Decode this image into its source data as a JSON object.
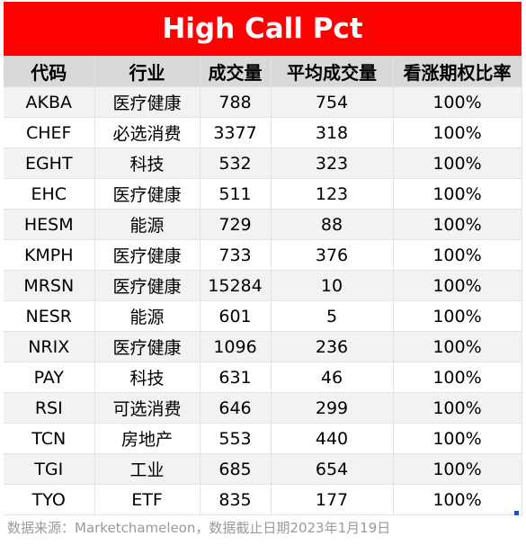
{
  "title": "High Call Pct",
  "columns": [
    "代码",
    "行业",
    "成交量",
    "平均成交量",
    "看涨期权比率"
  ],
  "rows": [
    [
      "AKBA",
      "医疗健康",
      "788",
      "754",
      "100%"
    ],
    [
      "CHEF",
      "必选消费",
      "3377",
      "318",
      "100%"
    ],
    [
      "EGHT",
      "科技",
      "532",
      "323",
      "100%"
    ],
    [
      "EHC",
      "医疗健康",
      "511",
      "123",
      "100%"
    ],
    [
      "HESM",
      "能源",
      "729",
      "88",
      "100%"
    ],
    [
      "KMPH",
      "医疗健康",
      "733",
      "376",
      "100%"
    ],
    [
      "MRSN",
      "医疗健康",
      "15284",
      "10",
      "100%"
    ],
    [
      "NESR",
      "能源",
      "601",
      "5",
      "100%"
    ],
    [
      "NRIX",
      "医疗健康",
      "1096",
      "236",
      "100%"
    ],
    [
      "PAY",
      "科技",
      "631",
      "46",
      "100%"
    ],
    [
      "RSI",
      "可选消费",
      "646",
      "299",
      "100%"
    ],
    [
      "TCN",
      "房地产",
      "553",
      "440",
      "100%"
    ],
    [
      "TGI",
      "工业",
      "685",
      "654",
      "100%"
    ],
    [
      "TYO",
      "ETF",
      "835",
      "177",
      "100%"
    ]
  ],
  "footer": "数据来源：Marketchameleon，数据截止日期2023年1月19日",
  "colors": {
    "title_bg": "#ff0000",
    "title_text": "#ffffff",
    "header_bg": "#d9d9d9",
    "stripe_bg": "#f2f2f2",
    "footer_text": "#9a9a9a"
  }
}
